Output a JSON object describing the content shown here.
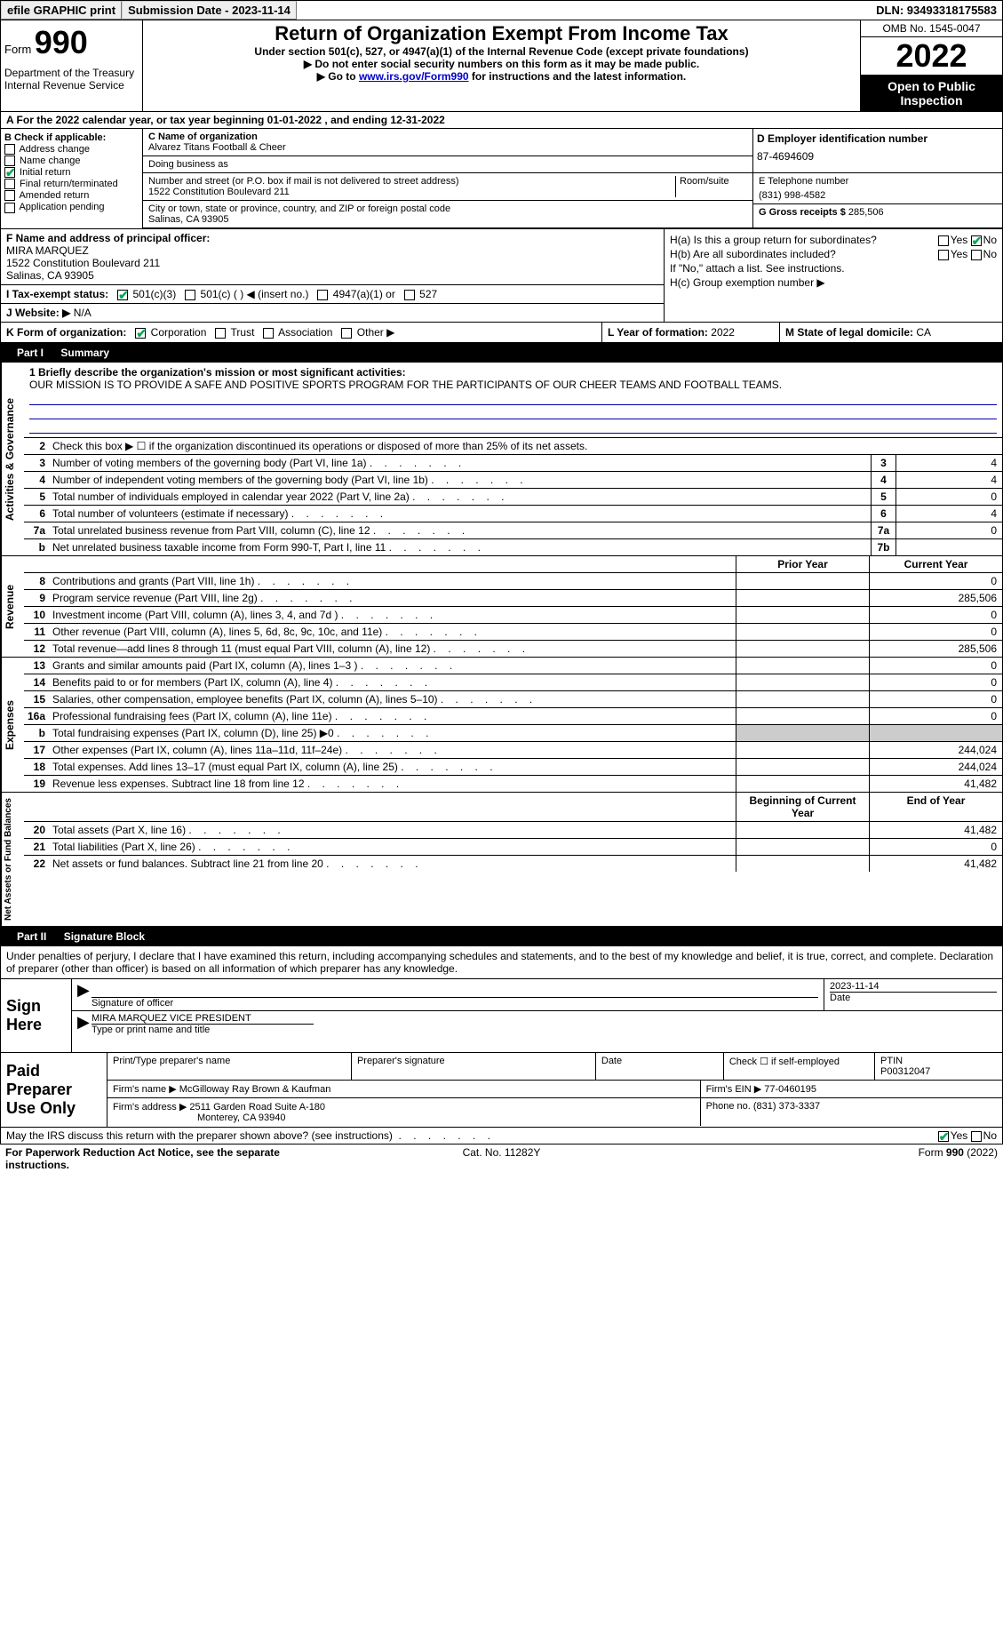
{
  "topbar": {
    "efile": "efile GRAPHIC print",
    "submission": "Submission Date - 2023-11-14",
    "dln": "DLN: 93493318175583"
  },
  "header": {
    "form_label": "Form",
    "form_num": "990",
    "dept": "Department of the Treasury",
    "irs": "Internal Revenue Service",
    "title": "Return of Organization Exempt From Income Tax",
    "sub": "Under section 501(c), 527, or 4947(a)(1) of the Internal Revenue Code (except private foundations)",
    "sub2a": "▶ Do not enter social security numbers on this form as it may be made public.",
    "sub2b_pre": "▶ Go to ",
    "sub2b_link": "www.irs.gov/Form990",
    "sub2b_post": " for instructions and the latest information.",
    "omb": "OMB No. 1545-0047",
    "year": "2022",
    "inspect": "Open to Public Inspection"
  },
  "A": {
    "text_pre": "A For the 2022 calendar year, or tax year beginning ",
    "begin": "01-01-2022",
    "mid": " , and ending ",
    "end": "12-31-2022"
  },
  "B": {
    "label": "B Check if applicable:",
    "items": [
      "Address change",
      "Name change",
      "Initial return",
      "Final return/terminated",
      "Amended return",
      "Application pending"
    ],
    "checked_idx": 2
  },
  "C": {
    "name_label": "C Name of organization",
    "name": "Alvarez Titans Football & Cheer",
    "dba_label": "Doing business as",
    "dba": "",
    "street_label": "Number and street (or P.O. box if mail is not delivered to street address)",
    "room_label": "Room/suite",
    "street": "1522 Constitution Boulevard 211",
    "city_label": "City or town, state or province, country, and ZIP or foreign postal code",
    "city": "Salinas, CA  93905"
  },
  "D": {
    "label": "D Employer identification number",
    "value": "87-4694609"
  },
  "E": {
    "label": "E Telephone number",
    "value": "(831) 998-4582"
  },
  "G": {
    "label": "G Gross receipts $",
    "value": "285,506"
  },
  "F": {
    "label": "F  Name and address of principal officer:",
    "name": "MIRA MARQUEZ",
    "addr1": "1522 Constitution Boulevard 211",
    "addr2": "Salinas, CA  93905"
  },
  "H": {
    "a": "H(a)  Is this a group return for subordinates?",
    "b": "H(b)  Are all subordinates included?",
    "b_note": "If \"No,\" attach a list. See instructions.",
    "c": "H(c)  Group exemption number ▶",
    "yes": "Yes",
    "no": "No"
  },
  "I": {
    "label": "I  Tax-exempt status:",
    "opts": [
      "501(c)(3)",
      "501(c) (  ) ◀ (insert no.)",
      "4947(a)(1) or",
      "527"
    ]
  },
  "J": {
    "label": "J  Website: ▶",
    "value": "N/A"
  },
  "K": {
    "label": "K Form of organization:",
    "opts": [
      "Corporation",
      "Trust",
      "Association",
      "Other ▶"
    ]
  },
  "L": {
    "label": "L Year of formation:",
    "value": "2022"
  },
  "M": {
    "label": "M State of legal domicile:",
    "value": "CA"
  },
  "part1": {
    "hdr": "Part I",
    "title": "Summary",
    "mission_label": "1  Briefly describe the organization's mission or most significant activities:",
    "mission": "OUR MISSION IS TO PROVIDE A SAFE AND POSITIVE SPORTS PROGRAM FOR THE PARTICIPANTS OF OUR CHEER TEAMS AND FOOTBALL TEAMS.",
    "line2": "Check this box ▶ ☐ if the organization discontinued its operations or disposed of more than 25% of its net assets.",
    "gov_lines": [
      {
        "n": "3",
        "t": "Number of voting members of the governing body (Part VI, line 1a)",
        "box": "3",
        "v": "4"
      },
      {
        "n": "4",
        "t": "Number of independent voting members of the governing body (Part VI, line 1b)",
        "box": "4",
        "v": "4"
      },
      {
        "n": "5",
        "t": "Total number of individuals employed in calendar year 2022 (Part V, line 2a)",
        "box": "5",
        "v": "0"
      },
      {
        "n": "6",
        "t": "Total number of volunteers (estimate if necessary)",
        "box": "6",
        "v": "4"
      },
      {
        "n": "7a",
        "t": "Total unrelated business revenue from Part VIII, column (C), line 12",
        "box": "7a",
        "v": "0"
      },
      {
        "n": "b",
        "t": "Net unrelated business taxable income from Form 990-T, Part I, line 11",
        "box": "7b",
        "v": ""
      }
    ],
    "prior_hdr": "Prior Year",
    "curr_hdr": "Current Year",
    "rev_lines": [
      {
        "n": "8",
        "t": "Contributions and grants (Part VIII, line 1h)",
        "p": "",
        "c": "0"
      },
      {
        "n": "9",
        "t": "Program service revenue (Part VIII, line 2g)",
        "p": "",
        "c": "285,506"
      },
      {
        "n": "10",
        "t": "Investment income (Part VIII, column (A), lines 3, 4, and 7d )",
        "p": "",
        "c": "0"
      },
      {
        "n": "11",
        "t": "Other revenue (Part VIII, column (A), lines 5, 6d, 8c, 9c, 10c, and 11e)",
        "p": "",
        "c": "0"
      },
      {
        "n": "12",
        "t": "Total revenue—add lines 8 through 11 (must equal Part VIII, column (A), line 12)",
        "p": "",
        "c": "285,506"
      }
    ],
    "exp_lines": [
      {
        "n": "13",
        "t": "Grants and similar amounts paid (Part IX, column (A), lines 1–3 )",
        "p": "",
        "c": "0"
      },
      {
        "n": "14",
        "t": "Benefits paid to or for members (Part IX, column (A), line 4)",
        "p": "",
        "c": "0"
      },
      {
        "n": "15",
        "t": "Salaries, other compensation, employee benefits (Part IX, column (A), lines 5–10)",
        "p": "",
        "c": "0"
      },
      {
        "n": "16a",
        "t": "Professional fundraising fees (Part IX, column (A), line 11e)",
        "p": "",
        "c": "0"
      },
      {
        "n": "b",
        "t": "Total fundraising expenses (Part IX, column (D), line 25) ▶0",
        "p": "SHADE",
        "c": "SHADE"
      },
      {
        "n": "17",
        "t": "Other expenses (Part IX, column (A), lines 11a–11d, 11f–24e)",
        "p": "",
        "c": "244,024"
      },
      {
        "n": "18",
        "t": "Total expenses. Add lines 13–17 (must equal Part IX, column (A), line 25)",
        "p": "",
        "c": "244,024"
      },
      {
        "n": "19",
        "t": "Revenue less expenses. Subtract line 18 from line 12",
        "p": "",
        "c": "41,482"
      }
    ],
    "begin_hdr": "Beginning of Current Year",
    "end_hdr": "End of Year",
    "net_lines": [
      {
        "n": "20",
        "t": "Total assets (Part X, line 16)",
        "p": "",
        "c": "41,482"
      },
      {
        "n": "21",
        "t": "Total liabilities (Part X, line 26)",
        "p": "",
        "c": "0"
      },
      {
        "n": "22",
        "t": "Net assets or fund balances. Subtract line 21 from line 20",
        "p": "",
        "c": "41,482"
      }
    ],
    "vtabs": {
      "gov": "Activities & Governance",
      "rev": "Revenue",
      "exp": "Expenses",
      "net": "Net Assets or Fund Balances"
    }
  },
  "part2": {
    "hdr": "Part II",
    "title": "Signature Block",
    "decl": "Under penalties of perjury, I declare that I have examined this return, including accompanying schedules and statements, and to the best of my knowledge and belief, it is true, correct, and complete. Declaration of preparer (other than officer) is based on all information of which preparer has any knowledge.",
    "sign_here": "Sign Here",
    "sig_officer": "Signature of officer",
    "date_label": "Date",
    "date": "2023-11-14",
    "typed": "MIRA MARQUEZ  VICE PRESIDENT",
    "typed_label": "Type or print name and title",
    "paid": "Paid Preparer Use Only",
    "p_name_label": "Print/Type preparer's name",
    "p_sig_label": "Preparer's signature",
    "p_date_label": "Date",
    "p_check": "Check ☐ if self-employed",
    "ptin_label": "PTIN",
    "ptin": "P00312047",
    "firm_name_label": "Firm's name    ▶",
    "firm_name": "McGilloway Ray Brown & Kaufman",
    "firm_ein_label": "Firm's EIN ▶",
    "firm_ein": "77-0460195",
    "firm_addr_label": "Firm's address ▶",
    "firm_addr1": "2511 Garden Road Suite A-180",
    "firm_addr2": "Monterey, CA  93940",
    "phone_label": "Phone no.",
    "phone": "(831) 373-3337"
  },
  "discuss": {
    "text": "May the IRS discuss this return with the preparer shown above? (see instructions)",
    "yes": "Yes",
    "no": "No"
  },
  "footer": {
    "left": "For Paperwork Reduction Act Notice, see the separate instructions.",
    "center": "Cat. No. 11282Y",
    "right": "Form 990 (2022)"
  }
}
